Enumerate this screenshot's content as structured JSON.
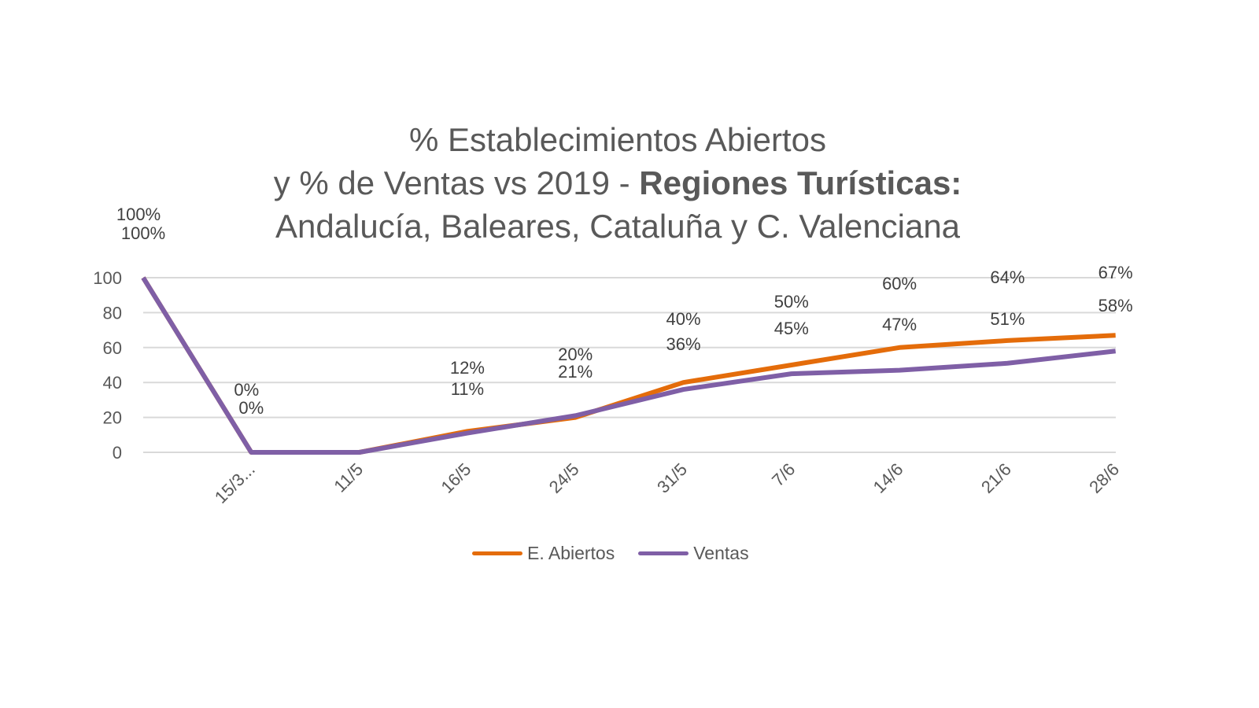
{
  "chart_data": {
    "type": "line",
    "title_lines": [
      "% Establecimientos  Abiertos",
      "y % de Ventas vs 2019 - "
    ],
    "title_bold": "Regiones Turísticas:",
    "title_line3": "Andalucía, Baleares, Cataluña y C. Valenciana",
    "categories": [
      "",
      "15/3...",
      "11/5",
      "16/5",
      "24/5",
      "31/5",
      "7/6",
      "14/6",
      "21/6",
      "28/6"
    ],
    "ylim": [
      0,
      100
    ],
    "yticks": [
      "0",
      "20",
      "40",
      "60",
      "80",
      "100"
    ],
    "grid": true,
    "legend_position": "bottom",
    "series": [
      {
        "name": "E. Abiertos",
        "color": "#E46C0A",
        "values": [
          100,
          0,
          0,
          12,
          20,
          40,
          50,
          60,
          64,
          67
        ],
        "labels": [
          "100%",
          "0%",
          null,
          "12%",
          "20%",
          "40%",
          "50%",
          "60%",
          "64%",
          "67%"
        ]
      },
      {
        "name": "Ventas",
        "color": "#7F5FA6",
        "values": [
          100,
          0,
          0,
          11,
          21,
          36,
          45,
          47,
          51,
          58
        ],
        "labels": [
          "100%",
          "0%",
          null,
          "11%",
          "21%",
          "36%",
          "45%",
          "47%",
          "51%",
          "58%"
        ]
      }
    ]
  }
}
